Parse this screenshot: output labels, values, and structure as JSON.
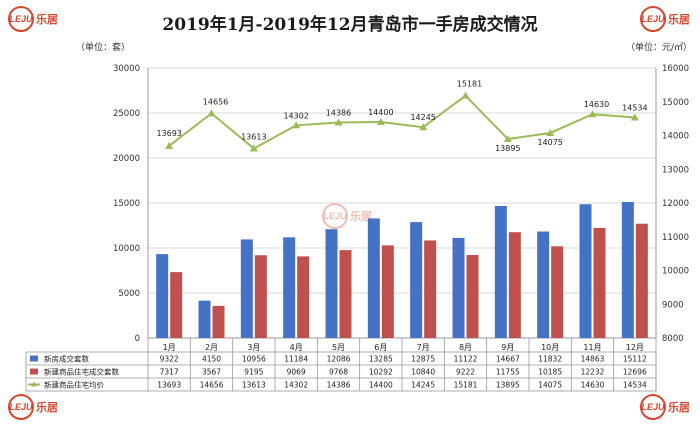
{
  "title": "2019年1月-2019年12月青岛市一手房成交情况",
  "units": {
    "left": "（单位：套）",
    "right": "（单位：元/㎡）"
  },
  "logo": {
    "mark": "LEJU",
    "text": "乐居"
  },
  "colors": {
    "blue": "#4472c4",
    "red": "#c0504d",
    "green": "#9bbb59",
    "grid": "#d9d9d9"
  },
  "chart_data": {
    "type": "bar",
    "categories": [
      "1月",
      "2月",
      "3月",
      "4月",
      "5月",
      "6月",
      "7月",
      "8月",
      "9月",
      "10月",
      "11月",
      "12月"
    ],
    "series": [
      {
        "name": "新房成交套数",
        "axis": "left",
        "kind": "bar",
        "values": [
          9322,
          4150,
          10956,
          11184,
          12086,
          13285,
          12875,
          11122,
          14667,
          11832,
          14863,
          15112
        ]
      },
      {
        "name": "新建商品住宅成交套数",
        "axis": "left",
        "kind": "bar",
        "values": [
          7317,
          3567,
          9195,
          9069,
          9768,
          10292,
          10840,
          9222,
          11755,
          10185,
          12232,
          12696
        ]
      },
      {
        "name": "新建商品住宅均价",
        "axis": "right",
        "kind": "line",
        "values": [
          13693,
          14656,
          13613,
          14302,
          14386,
          14400,
          14245,
          15181,
          13895,
          14075,
          14630,
          14534
        ]
      }
    ],
    "y_left": {
      "min": 0,
      "max": 30000,
      "step": 5000,
      "ticks": [
        "0",
        "5000",
        "10000",
        "15000",
        "20000",
        "25000",
        "30000"
      ]
    },
    "y_right": {
      "min": 8000,
      "max": 16000,
      "step": 1000,
      "ticks": [
        "8000",
        "9000",
        "10000",
        "11000",
        "12000",
        "13000",
        "14000",
        "15000",
        "16000"
      ]
    },
    "legend": "bottom-table",
    "grid": true
  }
}
